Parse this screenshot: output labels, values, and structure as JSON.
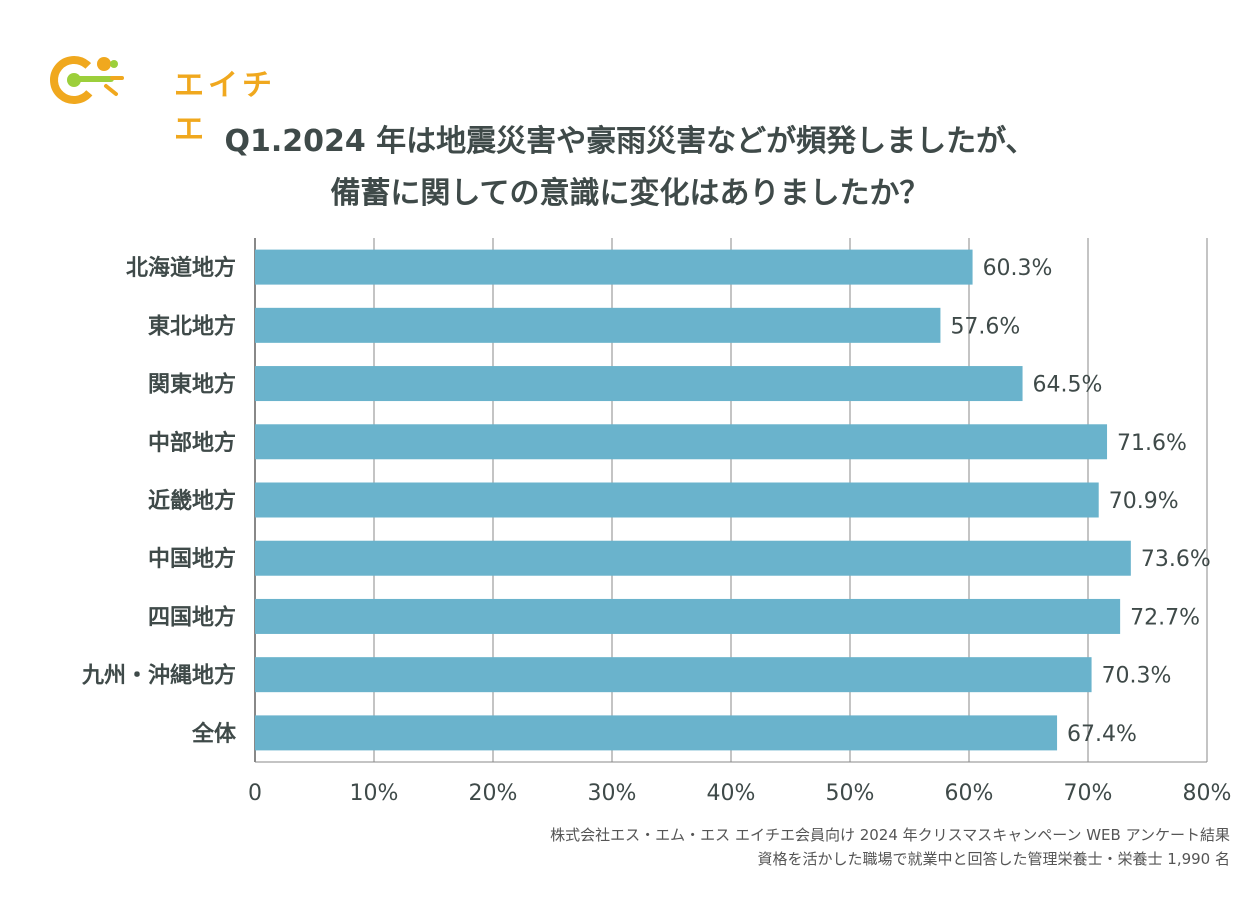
{
  "logo": {
    "text": "エイチエ"
  },
  "title": {
    "line1": "Q1.2024 年は地震災害や豪雨災害などが頻発しましたが、",
    "line2": "備蓄に関しての意識に変化はありましたか？"
  },
  "notes": {
    "line1": "株式会社エス・エム・エス エイチエ会員向け 2024 年クリスマスキャンペーン WEB アンケート結果",
    "line2": "資格を活かした職場で就業中と回答した管理栄養士・栄養士 1,990 名"
  },
  "colors": {
    "bar": "#6ab3cc",
    "accent": "#f0a81e",
    "grid": "#888888",
    "text": "#3f4a49"
  },
  "chart_data": {
    "type": "bar",
    "orientation": "horizontal",
    "categories": [
      "北海道地方",
      "東北地方",
      "関東地方",
      "中部地方",
      "近畿地方",
      "中国地方",
      "四国地方",
      "九州・沖縄地方",
      "全体"
    ],
    "values": [
      60.3,
      57.6,
      64.5,
      71.6,
      70.9,
      73.6,
      72.7,
      70.3,
      67.4
    ],
    "value_labels": [
      "60.3%",
      "57.6%",
      "64.5%",
      "71.6%",
      "70.9%",
      "73.6%",
      "72.7%",
      "70.3%",
      "67.4%"
    ],
    "xlim": [
      0,
      80
    ],
    "xticks": [
      0,
      10,
      20,
      30,
      40,
      50,
      60,
      70,
      80
    ],
    "xtick_labels": [
      "0",
      "10%",
      "20%",
      "30%",
      "40%",
      "50%",
      "60%",
      "70%",
      "80%"
    ],
    "grid": true
  }
}
